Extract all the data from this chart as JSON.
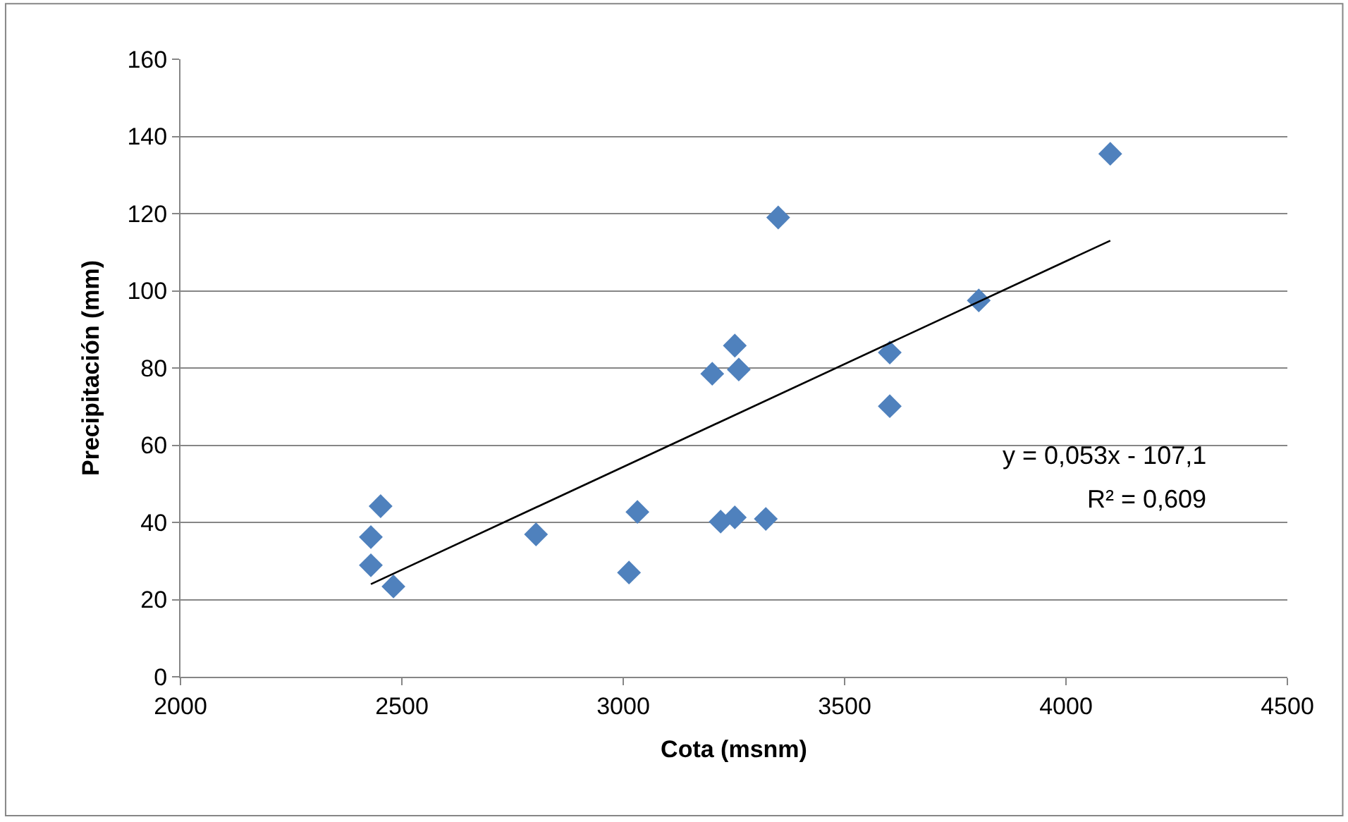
{
  "chart_data": {
    "type": "scatter",
    "xlabel": "Cota (msnm)",
    "ylabel": "Precipitación (mm)",
    "xlim": [
      2000,
      4500
    ],
    "xticks": [
      2000,
      2500,
      3000,
      3500,
      4000,
      4500
    ],
    "ylim": [
      0,
      160
    ],
    "yticks": [
      0,
      20,
      40,
      60,
      80,
      100,
      120,
      140,
      160
    ],
    "grid": "y",
    "marker": "diamond",
    "annotations": [
      "y = 0,053x - 107,1",
      "R² = 0,609"
    ],
    "series": [
      {
        "color": "#4f81bd",
        "x": [
          2430,
          2430,
          2452,
          2481,
          2803,
          3013,
          3032,
          3201,
          3220,
          3252,
          3252,
          3261,
          3322,
          3350,
          3602,
          3602,
          3803,
          4100
        ],
        "values": [
          36.2,
          28.9,
          44.2,
          23.4,
          36.9,
          27,
          42.7,
          78.5,
          40.2,
          85.8,
          41.3,
          79.6,
          40.9,
          119,
          84,
          70.1,
          97.5,
          135.5
        ]
      },
      {
        "type": "line",
        "color": "#000000",
        "marker": "none",
        "x": [
          2430,
          4100
        ],
        "values": [
          24,
          113
        ]
      }
    ]
  }
}
